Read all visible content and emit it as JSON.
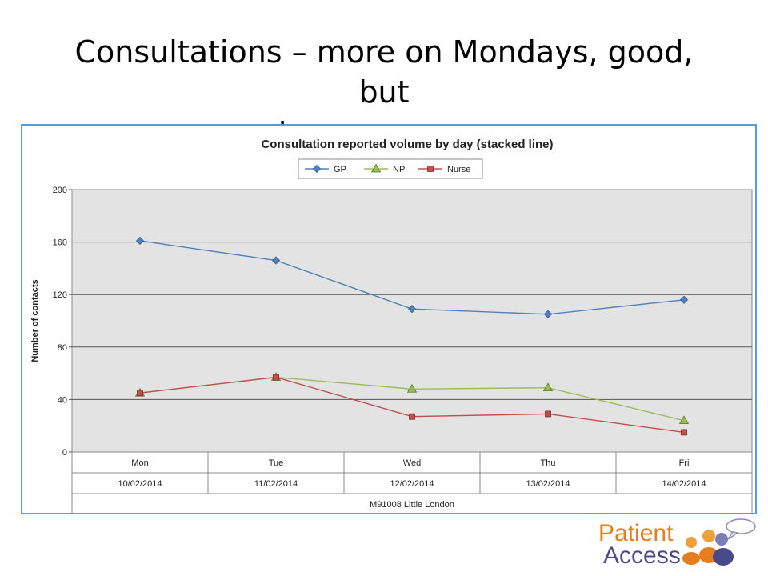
{
  "slide": {
    "title_line1": "Consultations – more on Mondays, good, but",
    "title_line2": "not so many more."
  },
  "logo": {
    "word1": "Patient",
    "word2": "Access"
  },
  "chart_data": {
    "type": "line",
    "title": "Consultation reported volume by day (stacked line)",
    "ylabel": "Number of contacts",
    "xlabel": "",
    "ylim": [
      0,
      200
    ],
    "yticks": [
      0,
      40,
      80,
      120,
      160,
      200
    ],
    "grid": true,
    "legend_position": "top-center",
    "categories": [
      "Mon",
      "Tue",
      "Wed",
      "Thu",
      "Fri"
    ],
    "dates": [
      "10/02/2014",
      "11/02/2014",
      "12/02/2014",
      "13/02/2014",
      "14/02/2014"
    ],
    "group_label": "M91008 Little London",
    "series": [
      {
        "name": "GP",
        "values": [
          161,
          146,
          109,
          105,
          116
        ],
        "color": "#4f81bd",
        "marker": "diamond"
      },
      {
        "name": "NP",
        "values": [
          45,
          57,
          48,
          49,
          24
        ],
        "color": "#9bbb59",
        "marker": "triangle"
      },
      {
        "name": "Nurse",
        "values": [
          45,
          57,
          27,
          29,
          15
        ],
        "color": "#c0504d",
        "marker": "square"
      }
    ]
  }
}
